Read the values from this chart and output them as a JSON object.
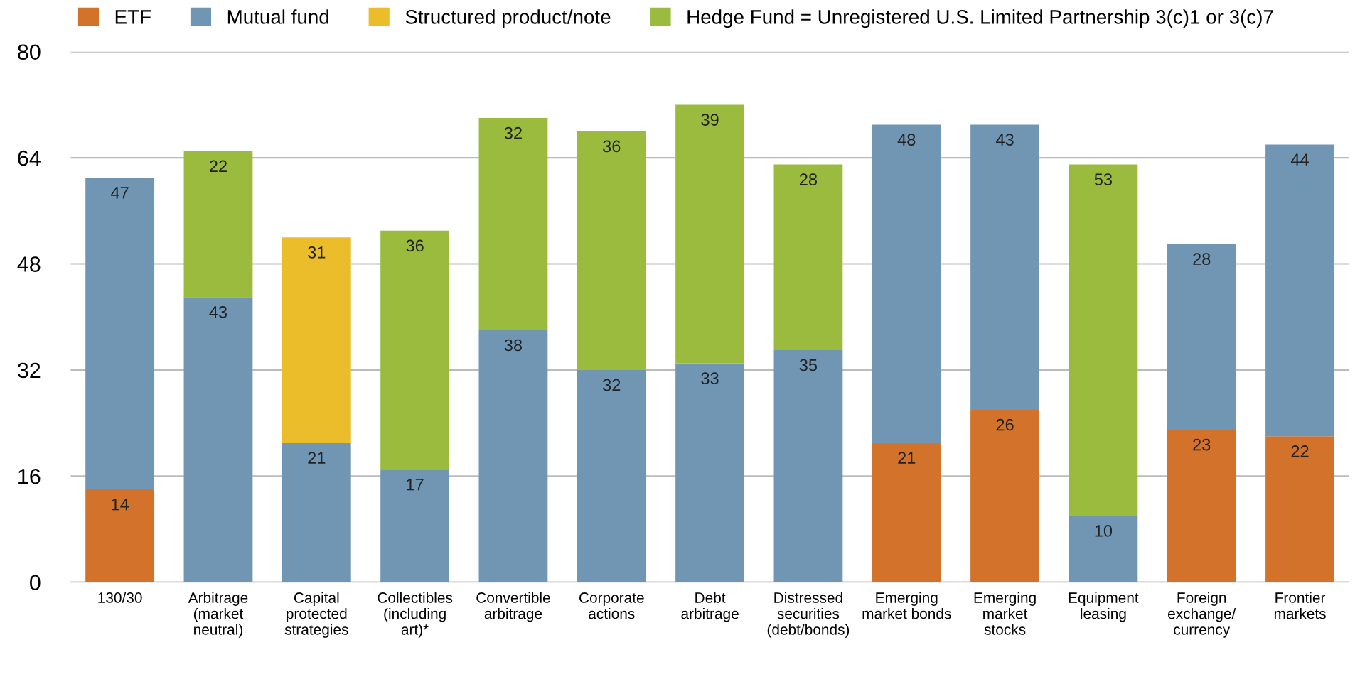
{
  "chart_data": {
    "type": "bar",
    "stacked": true,
    "data_labels": true,
    "categories": [
      "130/30",
      "Arbitrage (market neutral)",
      "Capital protected strategies",
      "Collectibles (including art)*",
      "Convertible arbitrage",
      "Corporate actions",
      "Debt arbitrage",
      "Distressed securities (debt/bonds)",
      "Emerging market bonds",
      "Emerging market stocks",
      "Equipment leasing",
      "Foreign exchange/ currency",
      "Frontier markets"
    ],
    "series": [
      {
        "name": "ETF",
        "color": "#d2722b",
        "values": [
          14,
          null,
          null,
          null,
          null,
          null,
          null,
          null,
          21,
          26,
          null,
          23,
          22
        ]
      },
      {
        "name": "Mutual fund",
        "color": "#7096b4",
        "values": [
          47,
          43,
          21,
          17,
          38,
          32,
          33,
          35,
          48,
          43,
          10,
          28,
          44
        ]
      },
      {
        "name": "Structured product/note",
        "color": "#ecbd2a",
        "values": [
          null,
          null,
          31,
          null,
          null,
          null,
          null,
          null,
          null,
          null,
          null,
          null,
          null
        ]
      },
      {
        "name": "Hedge Fund = Unregistered U.S. Limited Partnership 3(c)1 or 3(c)7",
        "color": "#9bbb3f",
        "values": [
          null,
          22,
          null,
          36,
          32,
          36,
          39,
          28,
          null,
          null,
          53,
          null,
          null
        ]
      }
    ],
    "ylim": [
      0,
      80
    ],
    "yticks": [
      0,
      16,
      32,
      48,
      64,
      80
    ],
    "grid": "y",
    "legend": "top left"
  }
}
